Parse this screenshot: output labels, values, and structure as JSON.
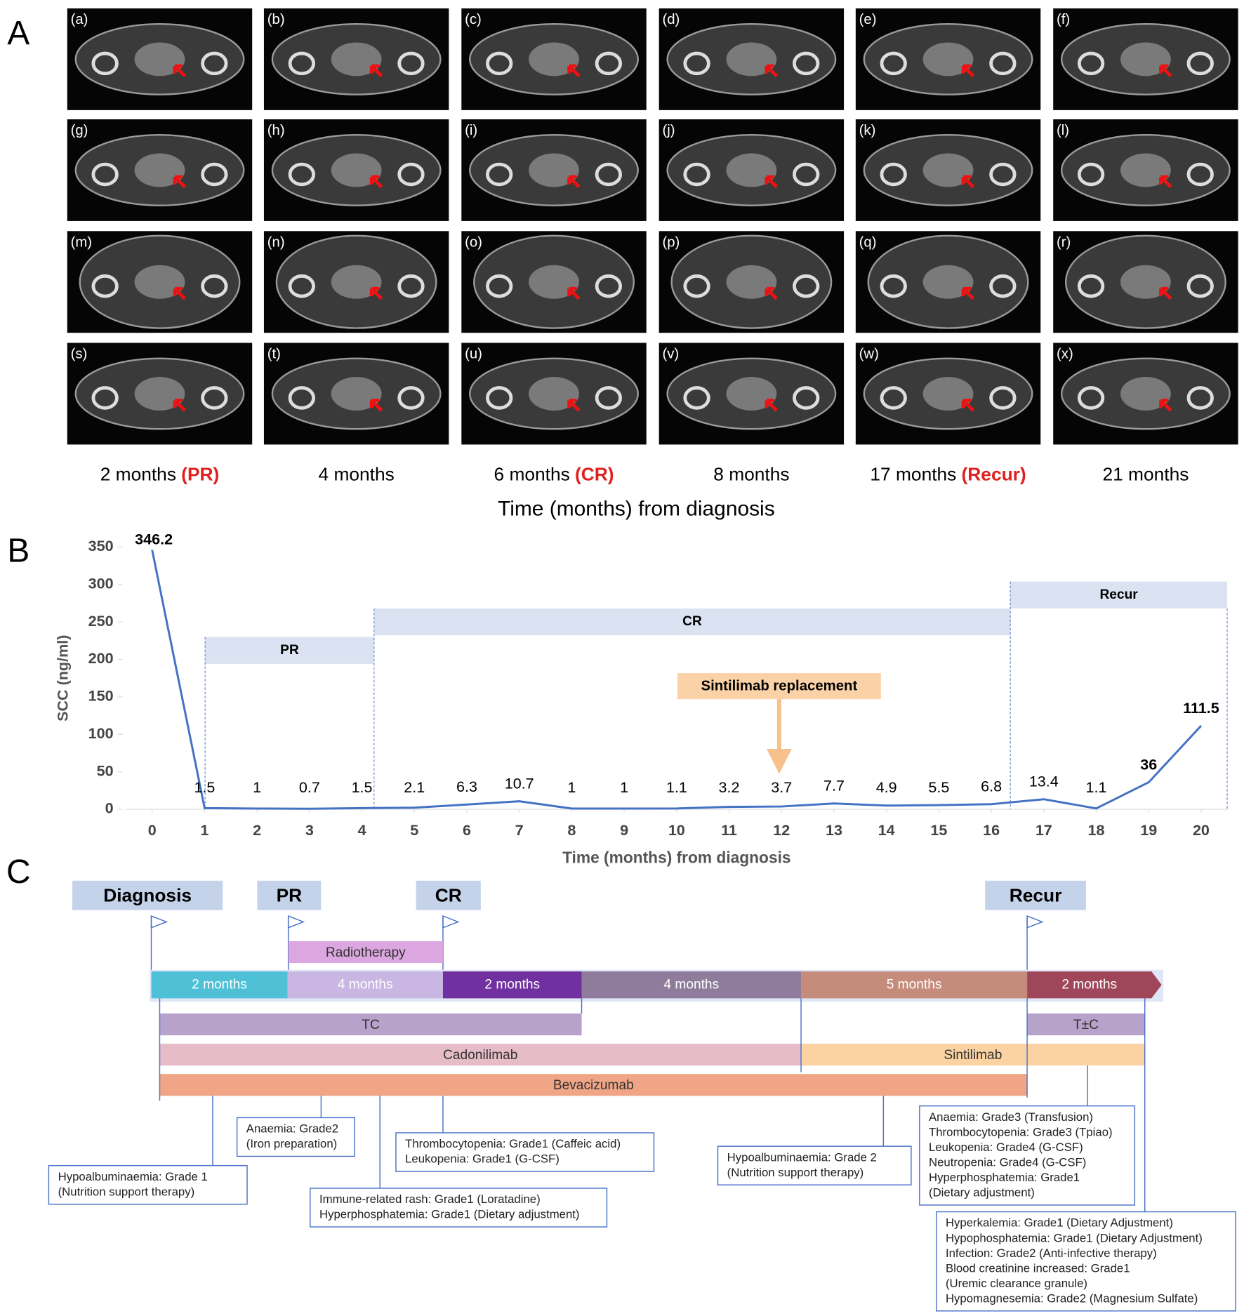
{
  "panel_labels": [
    "A",
    "B",
    "C"
  ],
  "panel_a": {
    "image_labels": [
      "(a)",
      "(b)",
      "(c)",
      "(d)",
      "(e)",
      "(f)",
      "(g)",
      "(h)",
      "(i)",
      "(j)",
      "(k)",
      "(l)",
      "(m)",
      "(n)",
      "(o)",
      "(p)",
      "(q)",
      "(r)",
      "(s)",
      "(t)",
      "(u)",
      "(v)",
      "(w)",
      "(x)"
    ],
    "time_points": [
      {
        "time": "2 months",
        "status": "(PR)"
      },
      {
        "time": "4 months"
      },
      {
        "time": "6 months",
        "status": "(CR)"
      },
      {
        "time": "8 months"
      },
      {
        "time": "17 months",
        "status": "(Recur)"
      },
      {
        "time": "21 months"
      }
    ],
    "axis_title": "Time (months) from diagnosis"
  },
  "chart_data": {
    "type": "line",
    "x": [
      0,
      1,
      2,
      3,
      4,
      5,
      6,
      7,
      8,
      9,
      10,
      11,
      12,
      13,
      14,
      15,
      16,
      17,
      18,
      19,
      20
    ],
    "values": [
      346.2,
      1.5,
      1,
      0.7,
      1.5,
      2.1,
      6.3,
      10.7,
      1,
      1,
      1.1,
      3.2,
      3.7,
      7.7,
      4.9,
      5.5,
      6.8,
      13.4,
      1.1,
      36,
      111.5
    ],
    "color": "#4472c4",
    "xlim": [
      0,
      20
    ],
    "ylim": [
      0,
      350
    ],
    "xticks": [
      0,
      1,
      2,
      3,
      4,
      5,
      6,
      7,
      8,
      9,
      10,
      11,
      12,
      13,
      14,
      15,
      16,
      17,
      18,
      19,
      20
    ],
    "yticks": [
      0,
      50,
      100,
      150,
      200,
      250,
      300,
      350
    ],
    "xlabel": "Time (months) from diagnosis",
    "ylabel": "SCC (ng/ml)",
    "phases": [
      "PR",
      "CR",
      "Recur"
    ],
    "annotation": "Sintilimab replacement"
  },
  "panel_c": {
    "milestones": [
      "Diagnosis",
      "PR",
      "CR",
      "Recur"
    ],
    "radiotherapy": "Radiotherapy",
    "periods": [
      "2 months",
      "4 months",
      "2 months",
      "4 months",
      "5 months",
      "2 months"
    ],
    "treatments": [
      "TC",
      "T±C",
      "Cadonilimab",
      "Sintilimab",
      "Bevacizumab"
    ],
    "adverse_events": [
      [
        "Hypoalbuminaemia: Grade 1",
        "(Nutrition support therapy)"
      ],
      [
        "Anaemia: Grade2",
        "(Iron preparation)"
      ],
      [
        "Immune-related rash: Grade1 (Loratadine)",
        "Hyperphosphatemia: Grade1 (Dietary adjustment)"
      ],
      [
        "Thrombocytopenia: Grade1  (Caffeic acid)",
        "Leukopenia: Grade1 (G-CSF)"
      ],
      [
        "Hypoalbuminaemia: Grade 2",
        "(Nutrition support therapy)"
      ],
      [
        "Anaemia: Grade3 (Transfusion)",
        "Thrombocytopenia: Grade3 (Tpiao)",
        "Leukopenia: Grade4 (G-CSF)",
        "Neutropenia: Grade4    (G-CSF)",
        "Hyperphosphatemia: Grade1",
        "(Dietary adjustment)"
      ],
      [
        "Hyperkalemia: Grade1 (Dietary Adjustment)",
        "Hypophosphatemia: Grade1 (Dietary Adjustment)",
        "Infection: Grade2 (Anti-infective therapy)",
        "Blood creatinine increased: Grade1",
        "(Uremic clearance granule)",
        "Hypomagnesemia: Grade2 (Magnesium Sulfate)"
      ]
    ]
  }
}
